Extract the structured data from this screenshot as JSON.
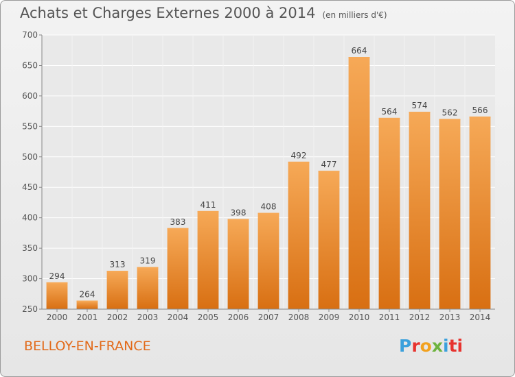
{
  "title": "Achats et Charges Externes 2000 à 2014",
  "unit_note": "(en milliers d'€)",
  "town": "BELLOY-EN-FRANCE",
  "logo": {
    "text": "Proxiti",
    "letters": [
      "P",
      "r",
      "o",
      "x",
      "i",
      "ti"
    ]
  },
  "colors": {
    "bar": "#f28f2e",
    "bar_light": "#f6a957",
    "bar_dark": "#d86f12",
    "accent": "#e26a1a"
  },
  "chart_data": {
    "type": "bar",
    "categories": [
      "2000",
      "2001",
      "2002",
      "2003",
      "2004",
      "2005",
      "2006",
      "2007",
      "2008",
      "2009",
      "2010",
      "2011",
      "2012",
      "2013",
      "2014"
    ],
    "values": [
      294,
      264,
      313,
      319,
      383,
      411,
      398,
      408,
      492,
      477,
      664,
      564,
      574,
      562,
      566
    ],
    "ylim": [
      250,
      700
    ],
    "yticks": [
      250,
      300,
      350,
      400,
      450,
      500,
      550,
      600,
      650,
      700
    ],
    "grid": true,
    "legend": "none"
  }
}
